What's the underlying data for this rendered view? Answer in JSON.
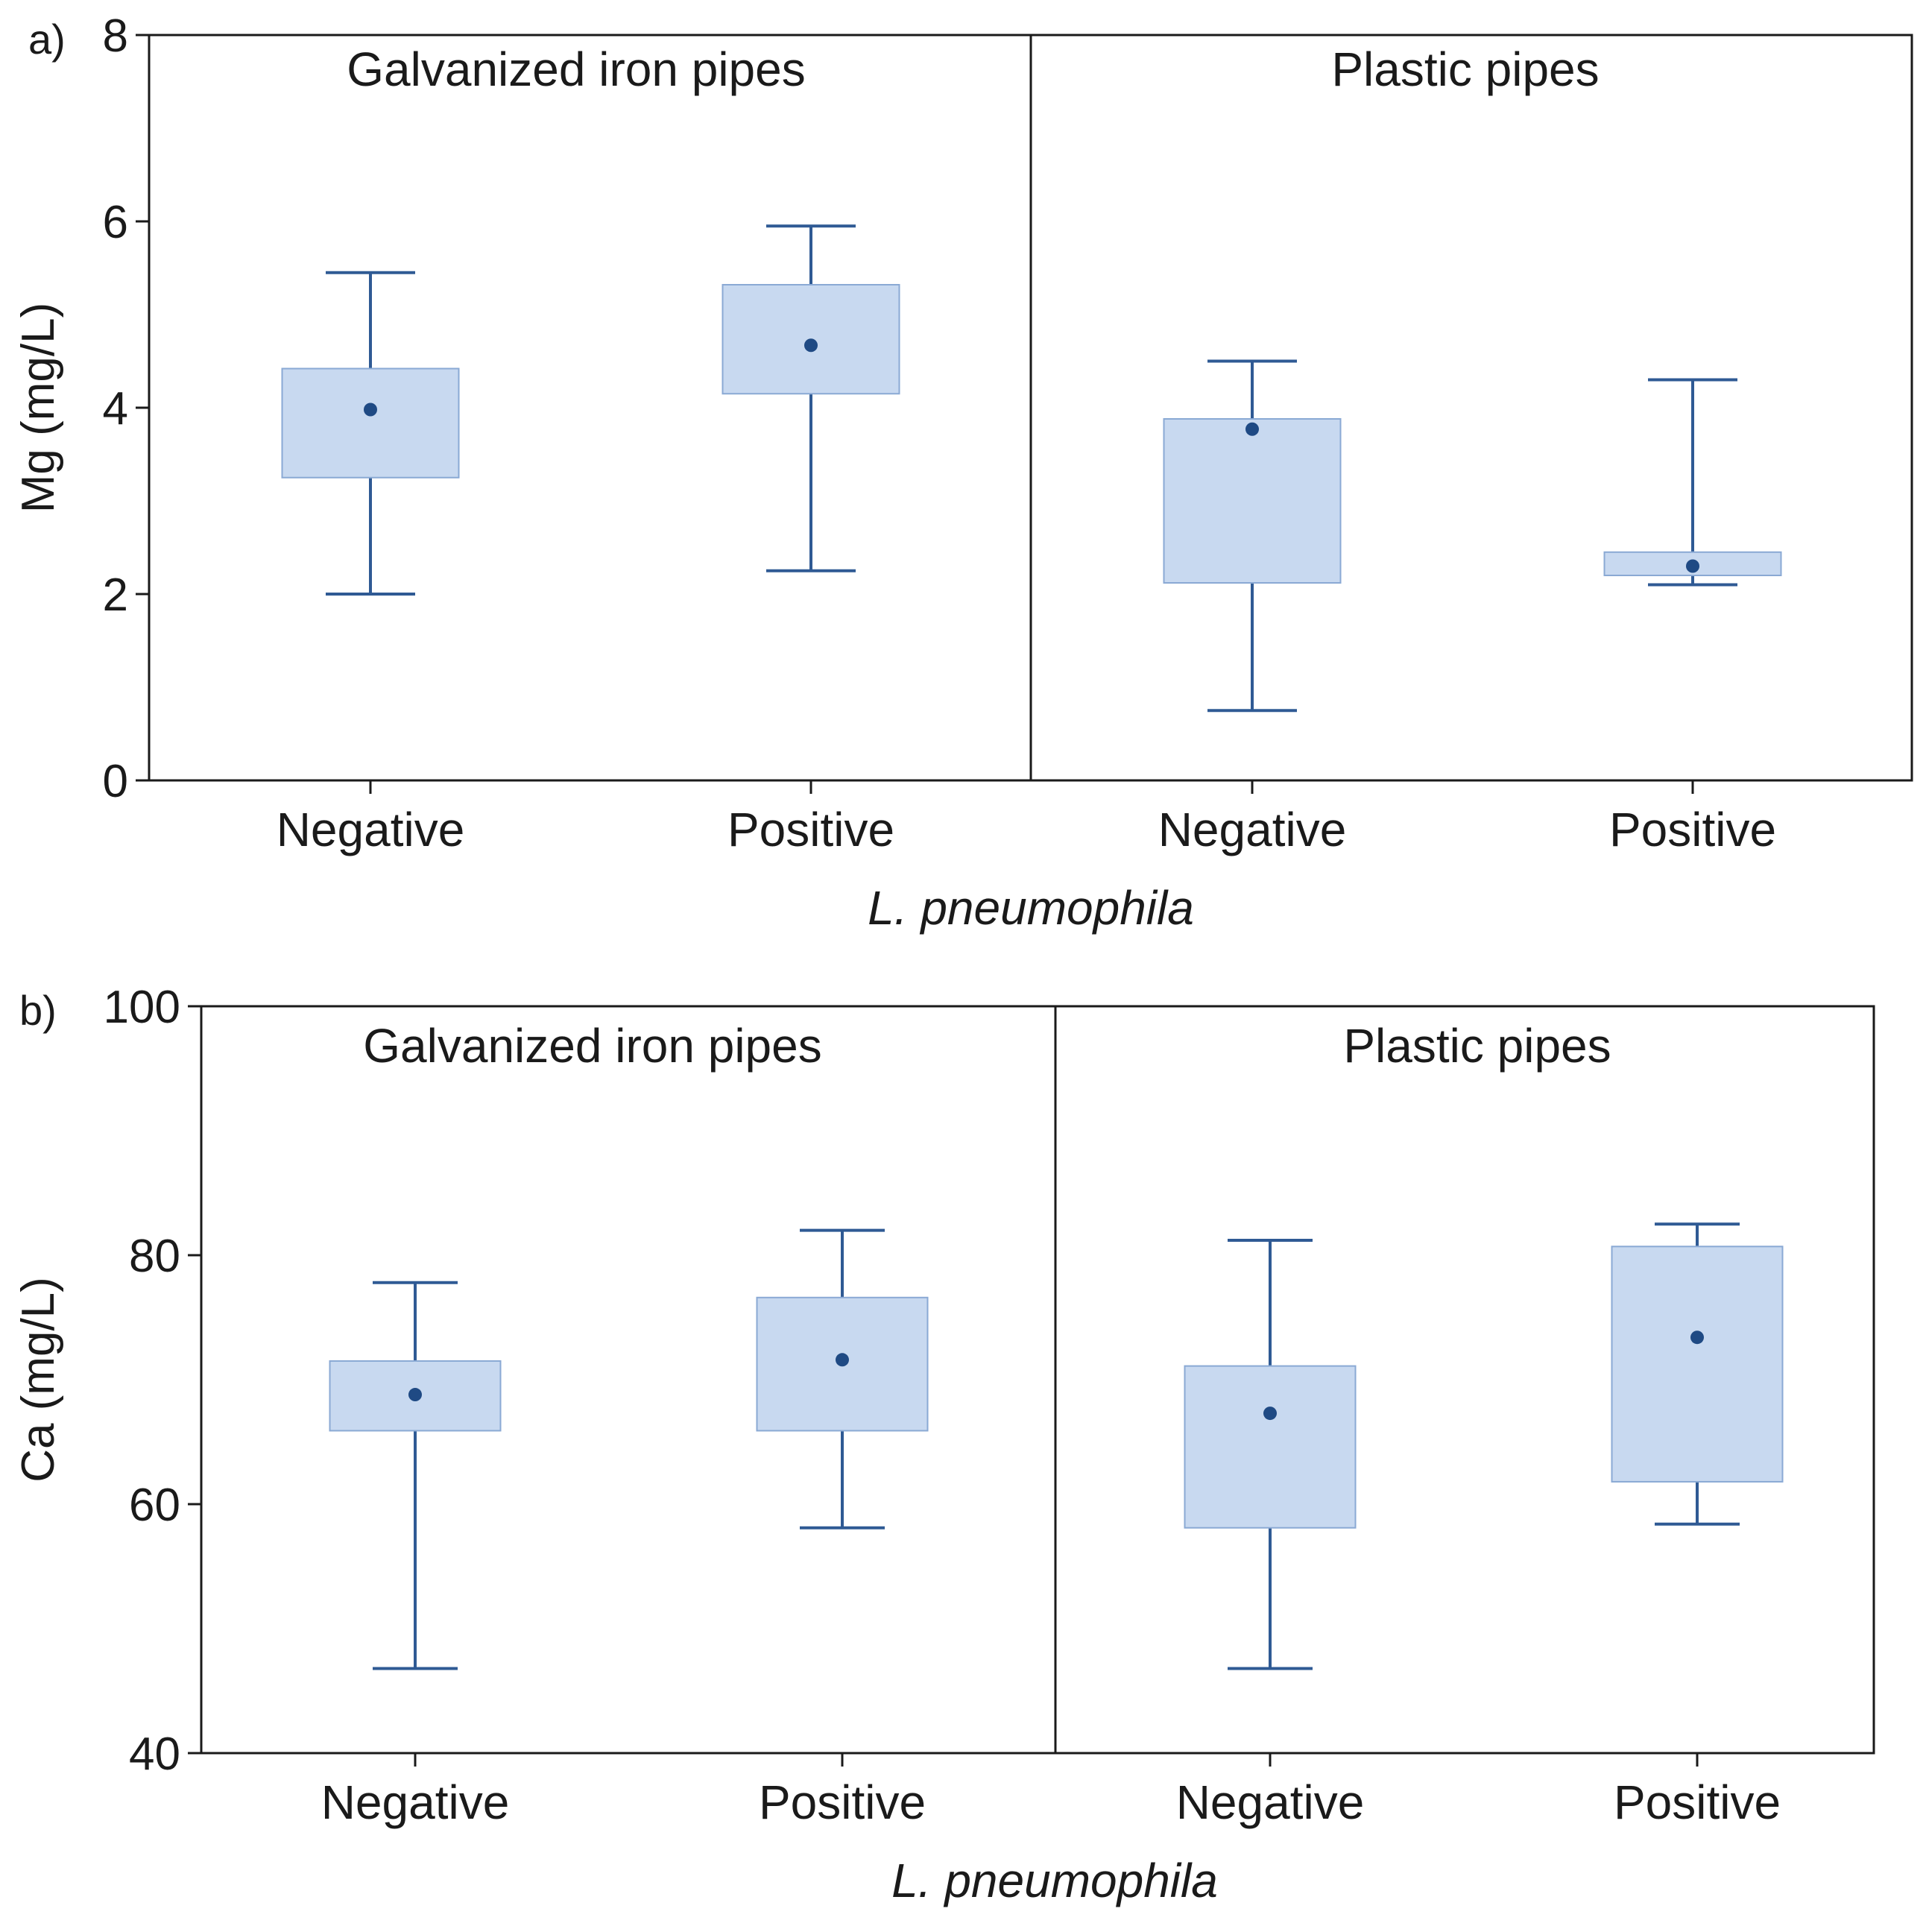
{
  "colors": {
    "box_fill": "#c8d9f0",
    "box_stroke": "#8aa9d4",
    "whisker": "#2f5a94",
    "mean_dot": "#1f4a84",
    "frame": "#1a1a1a"
  },
  "chart_data": [
    {
      "type": "box",
      "panel_label": "a)",
      "ylabel": "Mg (mg/L)",
      "xlabel": "L. pneumophila",
      "ylim": [
        0,
        8
      ],
      "yticks": [
        0,
        2,
        4,
        6,
        8
      ],
      "ytick_labels": [
        "0",
        "2",
        "4",
        "6",
        "8"
      ],
      "groups": [
        {
          "title": "Galvanized iron pipes",
          "boxes": [
            {
              "category": "Negative",
              "whisker_low": 2.0,
              "q1": 3.25,
              "mean": 3.98,
              "q3": 4.42,
              "whisker_high": 5.45
            },
            {
              "category": "Positive",
              "whisker_low": 2.25,
              "q1": 4.15,
              "mean": 4.67,
              "q3": 5.32,
              "whisker_high": 5.95
            }
          ]
        },
        {
          "title": "Plastic pipes",
          "boxes": [
            {
              "category": "Negative",
              "whisker_low": 0.75,
              "q1": 2.12,
              "mean": 3.77,
              "q3": 3.88,
              "whisker_high": 4.5
            },
            {
              "category": "Positive",
              "whisker_low": 2.1,
              "q1": 2.2,
              "mean": 2.3,
              "q3": 2.45,
              "whisker_high": 4.3
            }
          ]
        }
      ]
    },
    {
      "type": "box",
      "panel_label": "b)",
      "ylabel": "Ca (mg/L)",
      "xlabel": "L. pneumophila",
      "ylim": [
        40,
        100
      ],
      "yticks": [
        40,
        60,
        80,
        100
      ],
      "ytick_labels": [
        "40",
        "60",
        "80",
        "100"
      ],
      "groups": [
        {
          "title": "Galvanized iron pipes",
          "boxes": [
            {
              "category": "Negative",
              "whisker_low": 46.8,
              "q1": 65.9,
              "mean": 68.8,
              "q3": 71.5,
              "whisker_high": 77.8
            },
            {
              "category": "Positive",
              "whisker_low": 58.1,
              "q1": 65.9,
              "mean": 71.6,
              "q3": 76.6,
              "whisker_high": 82.0
            }
          ]
        },
        {
          "title": "Plastic pipes",
          "boxes": [
            {
              "category": "Negative",
              "whisker_low": 46.8,
              "q1": 58.1,
              "mean": 67.3,
              "q3": 71.1,
              "whisker_high": 81.2
            },
            {
              "category": "Positive",
              "whisker_low": 58.4,
              "q1": 61.8,
              "mean": 73.4,
              "q3": 80.7,
              "whisker_high": 82.5
            }
          ]
        }
      ]
    }
  ]
}
